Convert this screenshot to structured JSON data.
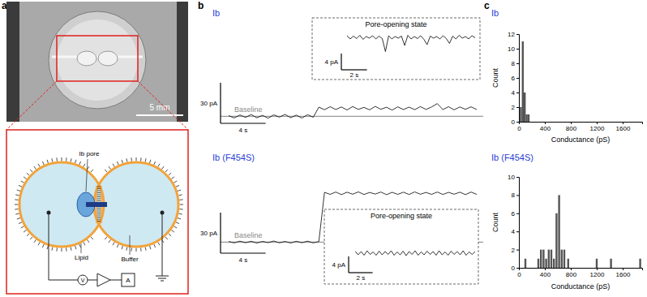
{
  "panel_labels": [
    "a",
    "b",
    "c"
  ],
  "panel_a": {
    "scale_bar": "5 mm",
    "labels": {
      "pore": "Ib pore",
      "lipid": "Lipid",
      "buffer": "Buffer",
      "amplifier": "A",
      "voltage": "V"
    }
  },
  "panel_b": {
    "traces": [
      {
        "title": "Ib",
        "baseline_label": "Baseline",
        "baseline": 0,
        "scale_bars": {
          "y": {
            "value": 30,
            "label": "30 pA"
          },
          "x": {
            "value": 4,
            "label": "4 s"
          }
        },
        "xlim": [
          0,
          22
        ],
        "ylim": [
          -4,
          32
        ],
        "x": [
          0,
          0.5,
          1,
          1.5,
          2,
          2.5,
          3,
          3.5,
          4,
          4.5,
          5,
          5.5,
          6,
          6.5,
          7,
          7.5,
          8,
          8.5,
          9,
          9.5,
          10,
          10.5,
          11,
          11.5,
          12,
          12.5,
          13,
          13.5,
          14,
          14.5,
          15,
          15.5,
          16,
          16.5,
          17,
          17.5,
          18,
          18.5,
          19,
          19.5,
          20,
          20.5,
          21,
          21.5,
          22
        ],
        "values": [
          0.5,
          -1.2,
          1.0,
          -0.8,
          1.3,
          -1.1,
          0.7,
          -1.4,
          1.1,
          -0.6,
          1.4,
          -1.0,
          0.9,
          -1.3,
          1.2,
          -0.7,
          6.8,
          4.9,
          7.1,
          5.0,
          6.9,
          4.7,
          7.2,
          5.1,
          6.6,
          4.8,
          7.3,
          5.2,
          6.7,
          4.6,
          7.0,
          5.0,
          6.8,
          4.9,
          7.2,
          5.1,
          6.9,
          9.4,
          5.0,
          7.1,
          4.8,
          6.9,
          5.2,
          7.0,
          5.0
        ],
        "inset": {
          "title": "Pore-opening state",
          "scale_bars": {
            "y": {
              "value": 4,
              "label": "4 pA"
            },
            "x": {
              "value": 2,
              "label": "2 s"
            }
          },
          "xlim": [
            0,
            10
          ],
          "ylim": [
            3,
            9
          ],
          "x": [
            0,
            0.25,
            0.5,
            0.75,
            1,
            1.25,
            1.5,
            1.75,
            2,
            2.25,
            2.5,
            2.75,
            3,
            3.25,
            3.5,
            3.75,
            4,
            4.25,
            4.5,
            4.75,
            5,
            5.25,
            5.5,
            5.75,
            6,
            6.25,
            6.5,
            6.75,
            7,
            7.25,
            7.5,
            7.75,
            8,
            8.25,
            8.5,
            8.75,
            9,
            9.25,
            9.5,
            9.75,
            10
          ],
          "values": [
            7.4,
            6.6,
            7.3,
            6.7,
            7.5,
            6.5,
            7.2,
            6.8,
            7.4,
            6.6,
            7.3,
            6.7,
            3.5,
            7.4,
            6.6,
            7.2,
            6.8,
            7.3,
            5.0,
            7.5,
            6.6,
            7.2,
            6.7,
            7.4,
            6.5,
            5.2,
            7.3,
            6.8,
            7.2,
            6.6,
            7.4,
            6.7,
            5.5,
            7.3,
            6.6,
            7.5,
            6.8,
            7.2,
            6.6,
            7.4,
            6.9
          ]
        }
      },
      {
        "title": "Ib (F454S)",
        "baseline_label": "Baseline",
        "baseline": 0,
        "scale_bars": {
          "y": {
            "value": 30,
            "label": "30 pA"
          },
          "x": {
            "value": 4,
            "label": "4 s"
          }
        },
        "xlim": [
          0,
          22
        ],
        "ylim": [
          -4,
          40
        ],
        "x": [
          0,
          0.5,
          1,
          1.5,
          2,
          2.5,
          3,
          3.5,
          4,
          4.5,
          5,
          5.5,
          6,
          6.5,
          7,
          7.5,
          8,
          8.5,
          9,
          9.5,
          10,
          10.5,
          11,
          11.5,
          12,
          12.5,
          13,
          13.5,
          14,
          14.5,
          15,
          15.5,
          16,
          16.5,
          17,
          17.5,
          18,
          18.5,
          19,
          19.5,
          20,
          20.5,
          21,
          21.5,
          22
        ],
        "values": [
          0.4,
          -0.6,
          0.7,
          -0.5,
          0.6,
          -0.7,
          0.5,
          -0.4,
          0.8,
          -0.6,
          0.5,
          -0.7,
          0.6,
          -0.5,
          0.7,
          -0.6,
          0.4,
          36.8,
          35.3,
          37.0,
          35.1,
          36.9,
          35.4,
          37.1,
          35.2,
          36.7,
          35.5,
          37.0,
          35.1,
          36.8,
          35.3,
          36.9,
          35.2,
          37.1,
          35.4,
          36.7,
          35.3,
          37.0,
          35.2,
          36.8,
          35.4,
          36.9,
          35.1,
          37.0,
          35.3
        ],
        "inset": {
          "title": "Pore-opening state",
          "scale_bars": {
            "y": {
              "value": 4,
              "label": "4 pA"
            },
            "x": {
              "value": 2,
              "label": "2 s"
            }
          },
          "xlim": [
            0,
            10
          ],
          "ylim": [
            32,
            38
          ],
          "x": [
            0,
            0.25,
            0.5,
            0.75,
            1,
            1.25,
            1.5,
            1.75,
            2,
            2.25,
            2.5,
            2.75,
            3,
            3.25,
            3.5,
            3.75,
            4,
            4.25,
            4.5,
            4.75,
            5,
            5.25,
            5.5,
            5.75,
            6,
            6.25,
            6.5,
            6.75,
            7,
            7.25,
            7.5,
            7.75,
            8,
            8.25,
            8.5,
            8.75,
            9,
            9.25,
            9.5,
            9.75,
            10
          ],
          "values": [
            36.5,
            35.6,
            36.4,
            35.5,
            36.6,
            35.7,
            36.3,
            35.5,
            36.5,
            35.6,
            36.4,
            35.7,
            36.6,
            35.5,
            36.3,
            35.6,
            36.5,
            35.4,
            36.4,
            35.7,
            36.6,
            35.5,
            36.3,
            35.6,
            36.5,
            35.7,
            36.4,
            35.5,
            36.6,
            35.6,
            36.3,
            35.5,
            36.5,
            35.7,
            36.4,
            35.6,
            36.6,
            35.5,
            36.3,
            35.7,
            36.4
          ]
        }
      }
    ]
  },
  "chart_data": [
    {
      "type": "bar",
      "title": "Ib",
      "x_label": "Conductance (pS)",
      "y_label": "Count",
      "color": "#555555",
      "x": [
        30,
        60,
        90,
        120,
        150
      ],
      "values": [
        2,
        11,
        4,
        1,
        1
      ],
      "xlim": [
        0,
        1900
      ],
      "xticks": [
        0,
        400,
        800,
        1200,
        1600
      ],
      "ylim": [
        0,
        12
      ],
      "yticks": [
        0,
        2,
        4,
        6,
        8,
        10,
        12
      ]
    },
    {
      "type": "bar",
      "title": "Ib (F454S)",
      "x_label": "Conductance (pS)",
      "y_label": "Count",
      "color": "#555555",
      "x": [
        100,
        300,
        340,
        380,
        420,
        460,
        500,
        540,
        580,
        620,
        660,
        700,
        760,
        1200,
        1420,
        1870
      ],
      "values": [
        1,
        1,
        2,
        2,
        1,
        2,
        2,
        1,
        6,
        8,
        2,
        2,
        1,
        1,
        1,
        1
      ],
      "xlim": [
        0,
        1900
      ],
      "xticks": [
        0,
        400,
        800,
        1200,
        1600
      ],
      "ylim": [
        0,
        10
      ],
      "yticks": [
        0,
        2,
        4,
        6,
        8,
        10
      ]
    }
  ]
}
